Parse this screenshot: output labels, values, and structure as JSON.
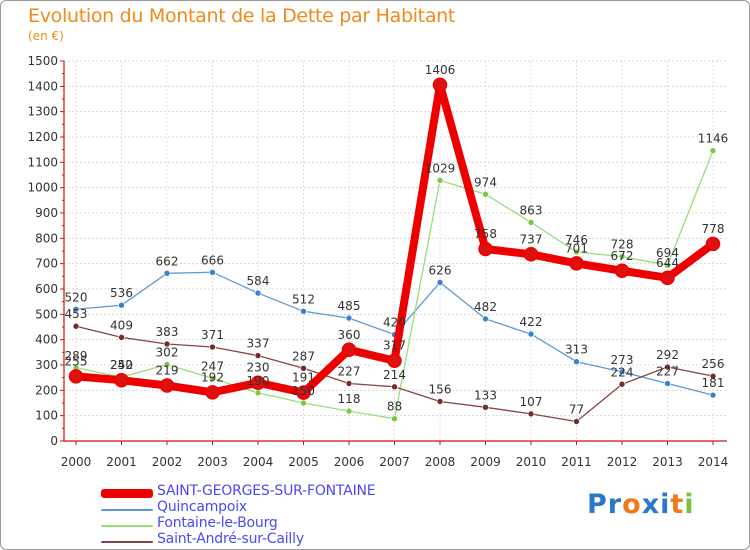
{
  "title": "Evolution du Montant de la Dette par Habitant",
  "subtitle": "(en €)",
  "logo": {
    "text": "Proxiti",
    "letter_colors": [
      "#2a78c8",
      "#2a78c8",
      "#ee7a18",
      "#2a78c8",
      "#2a78c8",
      "#ee7a18",
      "#7cc242"
    ]
  },
  "chart_data": {
    "type": "line",
    "title": "Evolution du Montant de la Dette par Habitant",
    "ylabel": "(en €)",
    "xlabel": "",
    "x": [
      2000,
      2001,
      2002,
      2003,
      2004,
      2005,
      2006,
      2007,
      2008,
      2009,
      2010,
      2011,
      2012,
      2013,
      2014
    ],
    "x_tick_labels": [
      "2000",
      "2001",
      "2002",
      "2003",
      "2004",
      "2005",
      "2006",
      "2007",
      "2008",
      "2009",
      "2010",
      "2011",
      "2012",
      "2013",
      "2014"
    ],
    "ylim": [
      0,
      1500
    ],
    "y_ticks": [
      0,
      100,
      200,
      300,
      400,
      500,
      600,
      700,
      800,
      900,
      1000,
      1100,
      1200,
      1300,
      1400,
      1500
    ],
    "y_tick_labels": [
      "0",
      "100",
      "200",
      "300",
      "400",
      "500",
      "600",
      "700",
      "800",
      "900",
      "1000",
      "1100",
      "1200",
      "1300",
      "1400",
      "1500"
    ],
    "grid": true,
    "legend_position": "bottom-left",
    "series": [
      {
        "name": "SAINT-GEORGES-SUR-FONTAINE",
        "color": "#ee0000",
        "marker_color": "#dd1111",
        "highlight": true,
        "values": [
          255,
          240,
          219,
          192,
          230,
          191,
          360,
          317,
          1406,
          758,
          737,
          701,
          672,
          644,
          778
        ],
        "labels": [
          "255",
          "240",
          "219",
          "192",
          "230",
          "191",
          "360",
          "317",
          "1406",
          "758",
          "737",
          "701",
          "672",
          "644",
          "778"
        ]
      },
      {
        "name": "Quincampoix",
        "color": "#5b9bd5",
        "marker_color": "#3c80d0",
        "highlight": false,
        "values": [
          520,
          536,
          662,
          666,
          584,
          512,
          485,
          420,
          626,
          482,
          422,
          313,
          273,
          227,
          181
        ],
        "labels": [
          "520",
          "536",
          "662",
          "666",
          "584",
          "512",
          "485",
          "420",
          "626",
          "482",
          "422",
          "313",
          "273",
          "227",
          "181"
        ]
      },
      {
        "name": "Fontaine-le-Bourg",
        "color": "#99dd77",
        "marker_color": "#7ac943",
        "highlight": false,
        "values": [
          289,
          252,
          302,
          247,
          190,
          150,
          118,
          88,
          1029,
          974,
          863,
          746,
          728,
          694,
          1146
        ],
        "labels": [
          "289",
          "252",
          "302",
          "247",
          "190",
          "150",
          "118",
          "88",
          "1029",
          "974",
          "863",
          "746",
          "728",
          "694",
          "1146"
        ]
      },
      {
        "name": "Saint-André-sur-Cailly",
        "color": "#884444",
        "marker_color": "#772a2a",
        "highlight": false,
        "values": [
          453,
          409,
          383,
          371,
          337,
          287,
          227,
          214,
          156,
          133,
          107,
          77,
          224,
          292,
          256
        ],
        "labels": [
          "453",
          "409",
          "383",
          "371",
          "337",
          "287",
          "227",
          "214",
          "156",
          "133",
          "107",
          "77",
          "224",
          "292",
          "256"
        ]
      }
    ]
  }
}
